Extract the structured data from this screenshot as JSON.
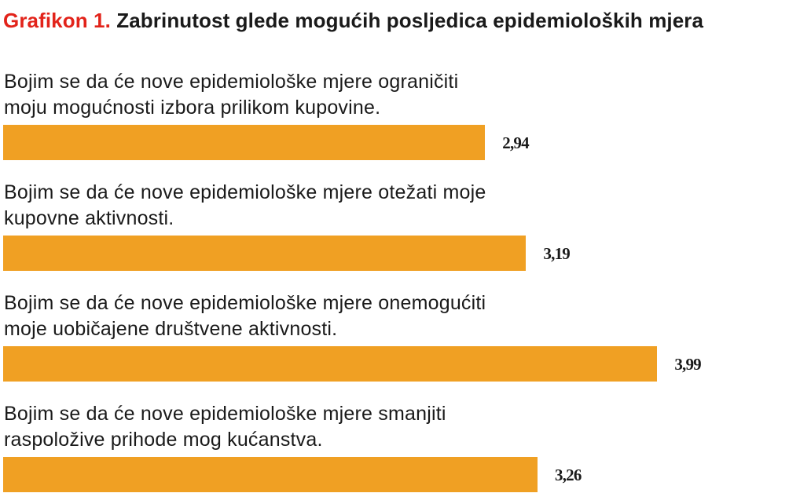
{
  "title": {
    "prefix": "Grafikon 1.",
    "main": "Zabrinutost glede mogućih posljedica epidemioloških mjera"
  },
  "colors": {
    "bar": "#f0a023",
    "title_prefix": "#e2231a",
    "text": "#1a1a1a"
  },
  "chart_data": {
    "type": "bar",
    "orientation": "horizontal",
    "title": "Grafikon 1. Zabrinutost glede mogućih posljedica epidemioloških mjera",
    "categories": [
      "Bojim se da će nove epidemiološke mjere ograničiti moju mogućnosti izbora prilikom kupovine.",
      "Bojim se da će nove epidemiološke mjere otežati moje kupovne aktivnosti.",
      "Bojim se da će nove epidemiološke mjere onemogućiti moje uobičajene društvene aktivnosti.",
      "Bojim se da će nove epidemiološke mjere smanjiti raspoložive prihode mog kućanstva."
    ],
    "labels": [
      [
        "Bojim se da će nove epidemiološke mjere ograničiti",
        "moju mogućnosti izbora prilikom kupovine."
      ],
      [
        "Bojim se da će nove epidemiološke mjere otežati moje",
        "kupovne aktivnosti."
      ],
      [
        "Bojim se da će nove epidemiološke mjere onemogućiti",
        "moje uobičajene društvene aktivnosti."
      ],
      [
        "Bojim se da će nove epidemiološke mjere smanjiti",
        "raspoložive prihode mog kućanstva."
      ]
    ],
    "values": [
      2.94,
      3.19,
      3.99,
      3.26
    ],
    "value_labels": [
      "2,94",
      "3,19",
      "3,99",
      "3,26"
    ],
    "xlabel": "",
    "ylabel": "",
    "grid": false,
    "legend": "none"
  }
}
